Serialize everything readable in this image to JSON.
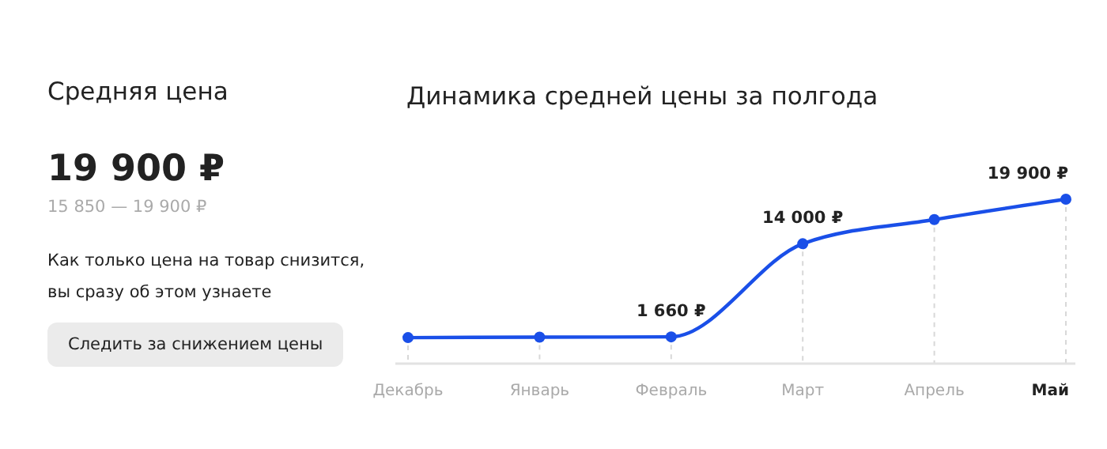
{
  "chart_data": [
    {
      "type": "other",
      "title": "Средняя цена",
      "annotations": [
        "19 900 ₽",
        "15 850 — 19 900 ₽",
        "Как только цена на товар снизится, вы сразу об этом узнаете",
        "Следить за снижением цены"
      ]
    },
    {
      "type": "line",
      "title": "Динамика средней цены за полгода",
      "categories": [
        "Декабрь",
        "Январь",
        "Февраль",
        "Март",
        "Апрель",
        "Май"
      ],
      "marker": "circle",
      "color": "#1a4fe8",
      "values": [
        1560,
        1620,
        1660,
        14000,
        17200,
        19900
      ],
      "value_labels": [
        null,
        null,
        "1 660 ₽",
        "14 000 ₽",
        null,
        "19 900 ₽"
      ],
      "grid": "x"
    }
  ]
}
